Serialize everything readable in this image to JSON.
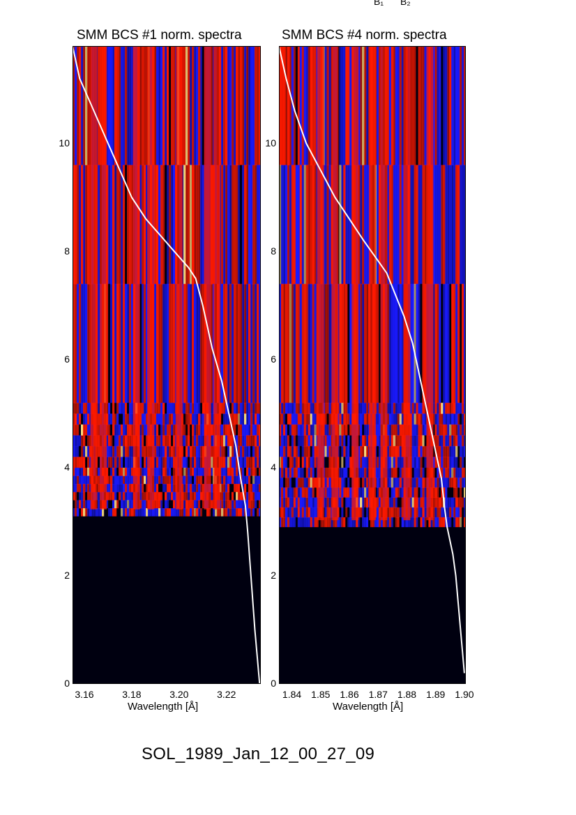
{
  "figure": {
    "top_labels": [
      "B₁",
      "B₂"
    ],
    "footer": "SOL_1989_Jan_12_00_27_09"
  },
  "chart_data": [
    {
      "type": "heatmap",
      "title": "SMM BCS #1 norm. spectra",
      "xlabel": "Wavelength [Å]",
      "ylabel": "",
      "xticks": [
        "3.16",
        "3.18",
        "3.20",
        "3.22"
      ],
      "xtick_values": [
        3.16,
        3.18,
        3.2,
        3.22
      ],
      "xlim": [
        3.155,
        3.2345
      ],
      "yticks": [
        "0",
        "2",
        "4",
        "6",
        "8",
        "10"
      ],
      "ytick_values": [
        0,
        2,
        4,
        6,
        8,
        10
      ],
      "ylim": [
        0,
        11.8
      ],
      "colormap": [
        "#000010",
        "#1a1aff",
        "#ff1a00",
        "#ffe080"
      ],
      "data_start_y": 3.1,
      "bright_columns": [
        3.164,
        3.168,
        3.182,
        3.188,
        3.2,
        3.212,
        3.216
      ],
      "overlay_curve": {
        "color": "#ffffff",
        "points": [
          [
            3.155,
            11.8
          ],
          [
            3.158,
            11.2
          ],
          [
            3.162,
            10.8
          ],
          [
            3.166,
            10.4
          ],
          [
            3.17,
            10.0
          ],
          [
            3.175,
            9.5
          ],
          [
            3.18,
            9.0
          ],
          [
            3.186,
            8.6
          ],
          [
            3.192,
            8.3
          ],
          [
            3.198,
            8.0
          ],
          [
            3.204,
            7.7
          ],
          [
            3.207,
            7.5
          ],
          [
            3.21,
            7.0
          ],
          [
            3.214,
            6.2
          ],
          [
            3.218,
            5.6
          ],
          [
            3.221,
            5.0
          ],
          [
            3.224,
            4.4
          ],
          [
            3.226,
            3.8
          ],
          [
            3.228,
            3.3
          ],
          [
            3.229,
            2.8
          ],
          [
            3.23,
            2.2
          ],
          [
            3.231,
            1.6
          ],
          [
            3.232,
            1.0
          ],
          [
            3.233,
            0.5
          ],
          [
            3.234,
            0.0
          ]
        ]
      }
    },
    {
      "type": "heatmap",
      "title": "SMM BCS #4 norm. spectra",
      "xlabel": "Wavelength [Å]",
      "ylabel": "",
      "xticks": [
        "1.84",
        "1.85",
        "1.86",
        "1.87",
        "1.88",
        "1.89",
        "1.90"
      ],
      "xtick_values": [
        1.84,
        1.85,
        1.86,
        1.87,
        1.88,
        1.89,
        1.9
      ],
      "xlim": [
        1.8355,
        1.9005
      ],
      "yticks": [
        "0",
        "2",
        "4",
        "6",
        "8",
        "10"
      ],
      "ytick_values": [
        0,
        2,
        4,
        6,
        8,
        10
      ],
      "ylim": [
        0,
        11.8
      ],
      "colormap": [
        "#000010",
        "#1a1aff",
        "#ff1a00",
        "#ffe080"
      ],
      "data_start_y": 2.9,
      "bright_columns": [
        1.85,
        1.855,
        1.862,
        1.868,
        1.872,
        1.88,
        1.888
      ],
      "overlay_curve": {
        "color": "#ffffff",
        "points": [
          [
            1.8355,
            11.8
          ],
          [
            1.838,
            11.2
          ],
          [
            1.841,
            10.6
          ],
          [
            1.845,
            10.0
          ],
          [
            1.85,
            9.5
          ],
          [
            1.855,
            9.0
          ],
          [
            1.86,
            8.6
          ],
          [
            1.865,
            8.2
          ],
          [
            1.869,
            7.9
          ],
          [
            1.873,
            7.6
          ],
          [
            1.876,
            7.2
          ],
          [
            1.879,
            6.8
          ],
          [
            1.882,
            6.3
          ],
          [
            1.884,
            5.8
          ],
          [
            1.886,
            5.3
          ],
          [
            1.888,
            4.8
          ],
          [
            1.89,
            4.3
          ],
          [
            1.892,
            3.8
          ],
          [
            1.893,
            3.3
          ],
          [
            1.894,
            2.9
          ],
          [
            1.896,
            2.4
          ],
          [
            1.897,
            2.0
          ],
          [
            1.898,
            1.4
          ],
          [
            1.899,
            0.8
          ],
          [
            1.9,
            0.2
          ]
        ]
      }
    }
  ]
}
